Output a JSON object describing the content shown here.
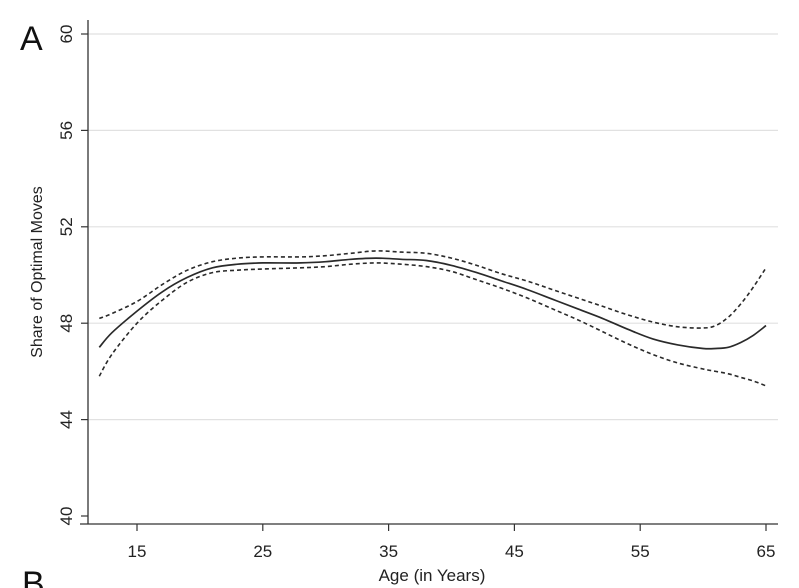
{
  "panel_labels": {
    "top": "A",
    "bottom": "B"
  },
  "chart_data": {
    "type": "line",
    "title": "",
    "xlabel": "Age (in Years)",
    "ylabel": "Share of Optimal Moves",
    "xlim": [
      12,
      65
    ],
    "ylim": [
      40,
      60
    ],
    "xticks": [
      15,
      25,
      35,
      45,
      55,
      65
    ],
    "yticks": [
      40,
      44,
      48,
      52,
      56,
      60
    ],
    "grid": "horizontal",
    "legend": "none",
    "series": [
      {
        "style": "solid",
        "x": [
          12,
          13,
          15,
          17,
          19,
          21,
          23,
          25,
          28,
          30,
          32,
          34,
          36,
          38,
          40,
          42,
          44,
          46,
          48,
          50,
          52,
          54,
          56,
          58,
          60,
          61,
          62,
          63,
          64,
          65
        ],
        "y": [
          47.0,
          47.6,
          48.5,
          49.3,
          49.9,
          50.3,
          50.45,
          50.5,
          50.5,
          50.55,
          50.65,
          50.7,
          50.65,
          50.6,
          50.4,
          50.1,
          49.75,
          49.4,
          49.0,
          48.6,
          48.2,
          47.75,
          47.35,
          47.1,
          46.95,
          46.95,
          47.0,
          47.2,
          47.5,
          47.9
        ]
      },
      {
        "style": "dashed",
        "x": [
          12,
          13,
          15,
          17,
          19,
          21,
          23,
          25,
          28,
          30,
          32,
          34,
          36,
          38,
          40,
          42,
          44,
          46,
          48,
          50,
          52,
          54,
          56,
          58,
          60,
          61,
          62,
          63,
          64,
          65
        ],
        "y": [
          48.2,
          48.4,
          48.9,
          49.6,
          50.2,
          50.55,
          50.7,
          50.75,
          50.75,
          50.8,
          50.9,
          51.0,
          50.95,
          50.9,
          50.7,
          50.4,
          50.05,
          49.75,
          49.4,
          49.05,
          48.7,
          48.35,
          48.05,
          47.85,
          47.8,
          47.9,
          48.25,
          48.8,
          49.5,
          50.3
        ]
      },
      {
        "style": "dashed",
        "x": [
          12,
          13,
          15,
          17,
          19,
          21,
          23,
          25,
          28,
          30,
          32,
          34,
          36,
          38,
          40,
          42,
          44,
          46,
          48,
          50,
          52,
          54,
          56,
          58,
          60,
          61,
          62,
          63,
          64,
          65
        ],
        "y": [
          45.8,
          46.7,
          48.0,
          48.95,
          49.7,
          50.1,
          50.2,
          50.25,
          50.3,
          50.35,
          50.45,
          50.5,
          50.45,
          50.35,
          50.15,
          49.8,
          49.45,
          49.05,
          48.6,
          48.15,
          47.65,
          47.15,
          46.7,
          46.35,
          46.1,
          46.0,
          45.9,
          45.75,
          45.6,
          45.4
        ]
      }
    ]
  }
}
